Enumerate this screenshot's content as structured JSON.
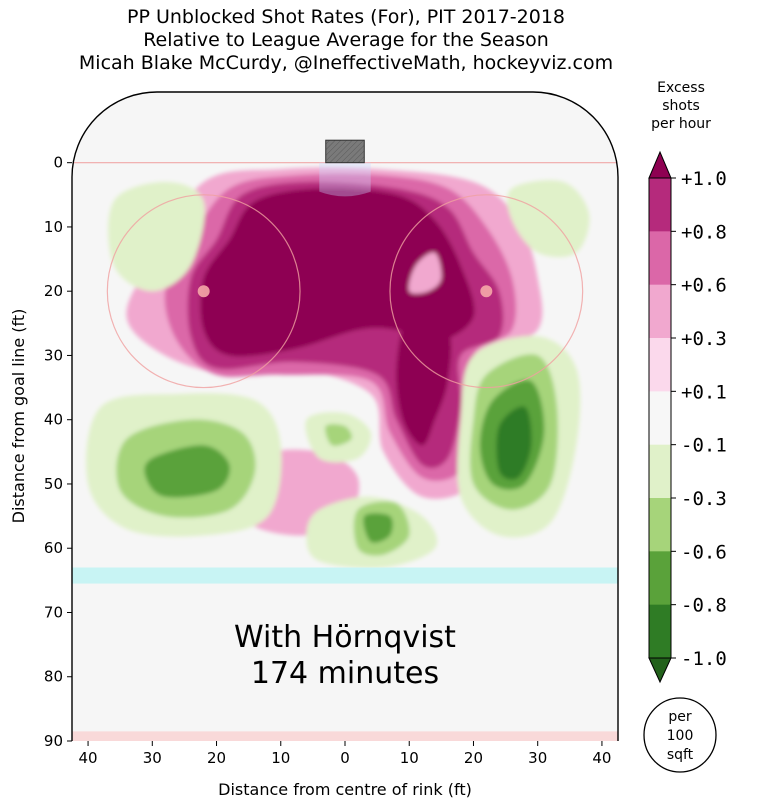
{
  "chart_data": {
    "type": "heatmap",
    "title_lines": [
      "PP Unblocked Shot Rates (For), PIT 2017-2018",
      "Relative to League Average for the Season",
      "Micah Blake McCurdy, @IneffectiveMath, hockeyviz.com"
    ],
    "xlabel": "Distance from centre of rink (ft)",
    "ylabel": "Distance from goal line (ft)",
    "xlim": [
      -42.5,
      42.5
    ],
    "ylim": [
      90,
      -11
    ],
    "x_ticks": [
      -40,
      -30,
      -20,
      -10,
      0,
      10,
      20,
      30,
      40
    ],
    "x_tick_labels": [
      "40",
      "30",
      "20",
      "10",
      "0",
      "10",
      "20",
      "30",
      "40"
    ],
    "y_ticks": [
      0,
      10,
      20,
      30,
      40,
      50,
      60,
      70,
      80,
      90
    ],
    "y_tick_labels": [
      "0",
      "10",
      "20",
      "30",
      "40",
      "50",
      "60",
      "70",
      "80",
      "90"
    ],
    "annotation_lines": [
      "With Hörnqvist",
      "174 minutes"
    ],
    "colorbar": {
      "title_lines": [
        "Excess",
        "shots",
        "per hour"
      ],
      "levels": [
        -1.0,
        -0.8,
        -0.6,
        -0.3,
        -0.1,
        0.1,
        0.3,
        0.6,
        0.8,
        1.0
      ],
      "tick_labels": [
        "-1.0",
        "-0.8",
        "-0.6",
        "-0.3",
        "-0.1",
        "+0.1",
        "+0.3",
        "+0.6",
        "+0.8",
        "+1.0"
      ],
      "colors": [
        "#2f7c25",
        "#5aa23a",
        "#a6d47a",
        "#e0f1c9",
        "#f7f7f7",
        "#fbd9ec",
        "#f1a8cf",
        "#db67a8",
        "#b52a7c",
        "#8e0152"
      ],
      "extend": "both"
    },
    "unit_badge_lines": [
      "per",
      "100",
      "sqft"
    ],
    "regions": [
      {
        "name": "Top high-danger area",
        "level": 1.0,
        "x_center": -2,
        "y_center": 20
      },
      {
        "name": "Right circle",
        "level": 0.9,
        "x_center": 15,
        "y_center": 25
      },
      {
        "name": "Right slot",
        "level": 0.9,
        "x_center": 14,
        "y_center": 37
      },
      {
        "name": "Right point",
        "level": -1.0,
        "x_center": 26,
        "y_center": 43
      },
      {
        "name": "Left point",
        "level": -0.8,
        "x_center": -24,
        "y_center": 48
      },
      {
        "name": "Centre point",
        "level": -0.6,
        "x_center": 5,
        "y_center": 55
      },
      {
        "name": "Left-centre blue line",
        "level": 0.6,
        "x_center": -5,
        "y_center": 51
      },
      {
        "name": "Upper-left corner",
        "level": -0.3,
        "x_center": -30,
        "y_center": 8
      }
    ]
  },
  "colors": {
    "rink_fill": "#f6f6f6",
    "goal_line": "#f0a8a8",
    "blue_line": "#c8f4f4",
    "net": "#808080"
  }
}
